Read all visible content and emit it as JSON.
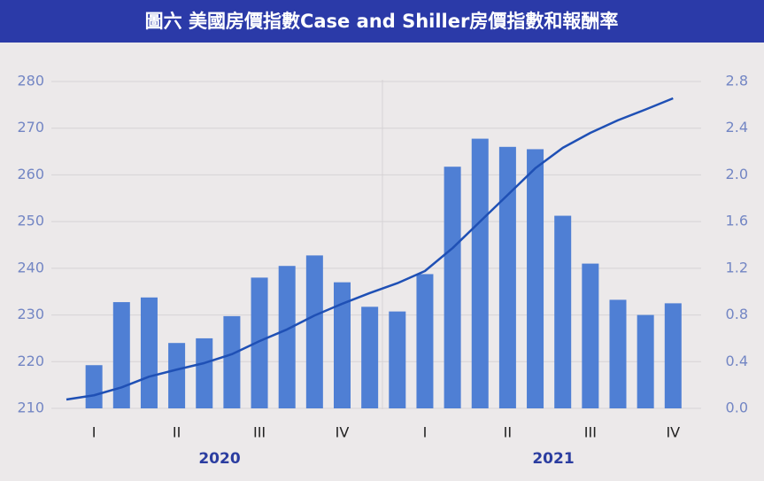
{
  "chart_data": {
    "type": "bar_line",
    "title": "圖六  美國房價指數Case and Shiller房價指數和報酬率",
    "categories": [
      null,
      "I",
      null,
      null,
      "II",
      null,
      null,
      "III",
      null,
      null,
      "IV",
      null,
      null,
      "I",
      null,
      null,
      "II",
      null,
      null,
      "III",
      null,
      null,
      "IV"
    ],
    "year_labels": [
      "2020",
      "2021"
    ],
    "series": [
      {
        "name": "報酬率",
        "color": "#4f7fd4",
        "axis": "y2",
        "kind": "bar",
        "values": [
          null,
          0.37,
          0.91,
          0.95,
          0.56,
          0.6,
          0.79,
          1.12,
          1.22,
          1.31,
          1.08,
          0.87,
          0.83,
          1.15,
          2.07,
          2.31,
          2.24,
          2.22,
          1.65,
          1.24,
          0.93,
          0.8,
          0.9
        ]
      },
      {
        "name": "房價指數",
        "color": "#1f50b5",
        "axis": "y",
        "kind": "line",
        "values": [
          211.9,
          212.8,
          214.5,
          216.8,
          218.3,
          219.7,
          221.6,
          224.4,
          226.9,
          229.9,
          232.4,
          234.7,
          236.8,
          239.4,
          244.3,
          250.0,
          255.7,
          261.4,
          265.8,
          269.0,
          271.7,
          274.0,
          276.4
        ]
      }
    ],
    "ylim": [
      210,
      280
    ],
    "yticks": [
      210,
      220,
      230,
      240,
      250,
      260,
      270,
      280
    ],
    "y2lim": [
      0,
      2.8
    ],
    "y2ticks": [
      {
        "value": 0,
        "label": "0.0"
      },
      0.4,
      0.8,
      {
        "value": 1.2,
        "label": "1.2"
      },
      1.6,
      {
        "value": 2,
        "label": "2.0"
      },
      2.4,
      2.8
    ],
    "grid": true
  }
}
